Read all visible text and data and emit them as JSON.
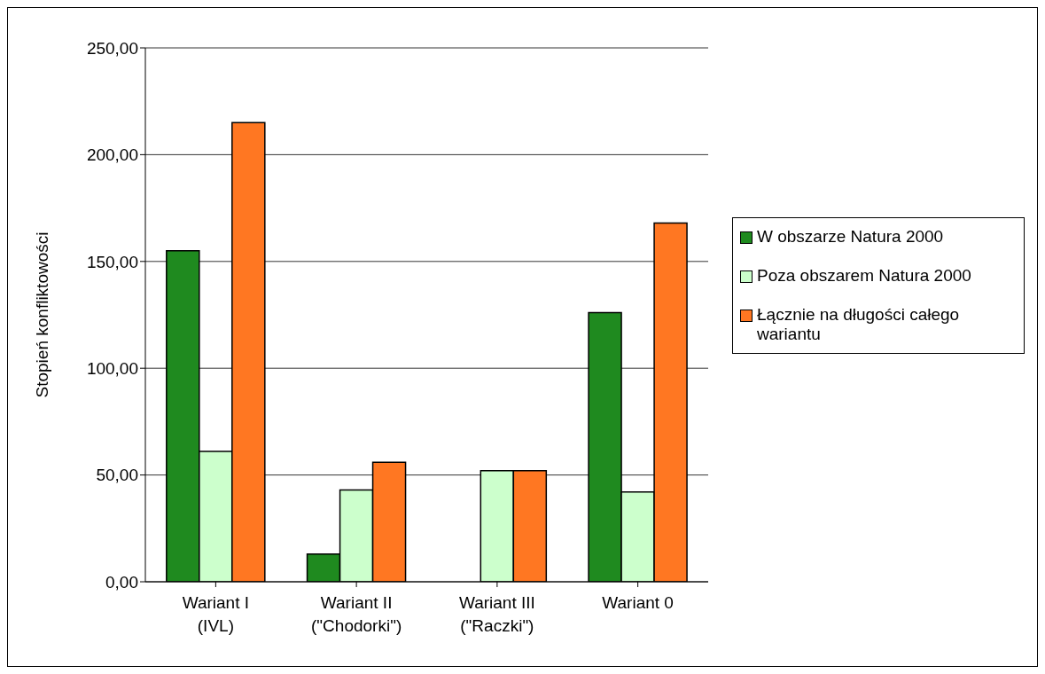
{
  "chart_data": {
    "type": "bar",
    "ylabel": "Stopień konfliktowości",
    "categories": [
      "Wariant I (IVL)",
      "Wariant II (\"Chodorki\")",
      "Wariant III (\"Raczki\")",
      "Wariant 0"
    ],
    "series": [
      {
        "name": "W obszarze Natura 2000",
        "color": "#1f8a1f",
        "values": [
          155,
          13,
          0,
          126
        ]
      },
      {
        "name": "Poza obszarem Natura 2000",
        "color": "#ccffcc",
        "values": [
          61,
          43,
          52,
          42
        ]
      },
      {
        "name": "Łącznie na długości całego wariantu",
        "color": "#ff7722",
        "values": [
          215,
          56,
          52,
          168
        ]
      }
    ],
    "ylim": [
      0,
      250
    ],
    "yticks": [
      {
        "value": 0,
        "label": "0,00"
      },
      {
        "value": 50,
        "label": "50,00"
      },
      {
        "value": 100,
        "label": "100,00"
      },
      {
        "value": 150,
        "label": "150,00"
      },
      {
        "value": 200,
        "label": "200,00"
      },
      {
        "value": 250,
        "label": "250,00"
      }
    ],
    "grid": "y",
    "legend": "right"
  }
}
